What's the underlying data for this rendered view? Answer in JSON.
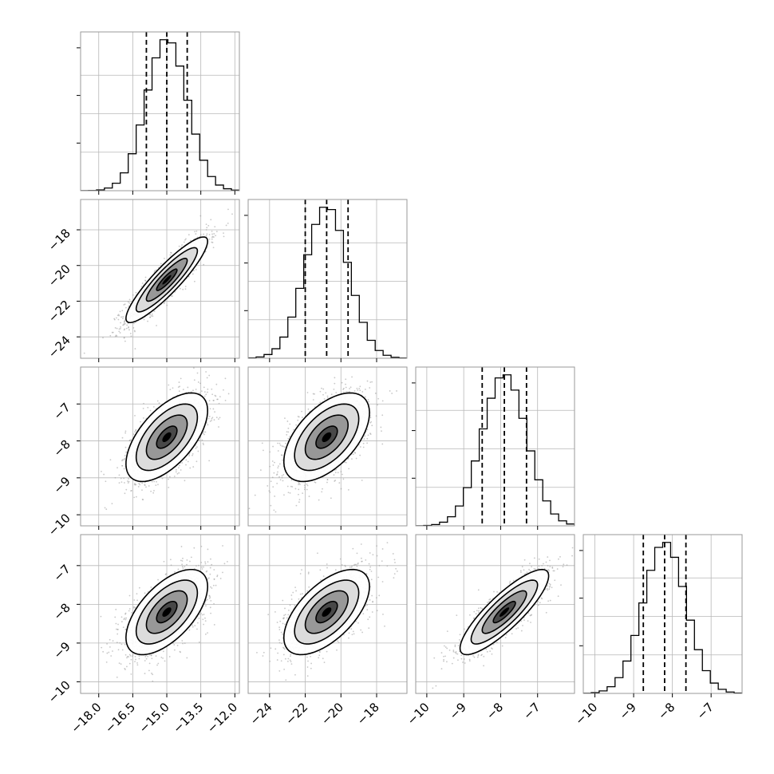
{
  "chart_data": {
    "type": "corner",
    "parameters": [
      {
        "mean": -15.0,
        "sigma": 0.9,
        "hist_range": [
          -18.8,
          -11.8
        ],
        "quantiles": [
          -15.9,
          -15.0,
          -14.1
        ],
        "ticks": [
          {
            "v": -18.0,
            "label": "−18.0"
          },
          {
            "v": -16.5,
            "label": "−16.5"
          },
          {
            "v": -15.0,
            "label": "−15.0"
          },
          {
            "v": -13.5,
            "label": "−13.5"
          },
          {
            "v": -12.0,
            "label": "−12.0"
          }
        ]
      },
      {
        "mean": -20.8,
        "sigma": 1.2,
        "hist_range": [
          -25.2,
          -16.3
        ],
        "quantiles": [
          -22.0,
          -20.8,
          -19.6
        ],
        "ticks": [
          {
            "v": -24,
            "label": "−24"
          },
          {
            "v": -22,
            "label": "−22"
          },
          {
            "v": -20,
            "label": "−20"
          },
          {
            "v": -18,
            "label": "−18"
          }
        ]
      },
      {
        "mean": -7.9,
        "sigma": 0.6,
        "hist_range": [
          -10.3,
          -6.0
        ],
        "quantiles": [
          -8.5,
          -7.9,
          -7.3
        ],
        "ticks": [
          {
            "v": -10,
            "label": "−10"
          },
          {
            "v": -9,
            "label": "−9"
          },
          {
            "v": -8,
            "label": "−8"
          },
          {
            "v": -7,
            "label": "−7"
          }
        ]
      },
      {
        "mean": -8.2,
        "sigma": 0.55,
        "hist_range": [
          -10.3,
          -6.2
        ],
        "quantiles": [
          -8.75,
          -8.2,
          -7.65
        ],
        "ticks": [
          {
            "v": -10,
            "label": "−10"
          },
          {
            "v": -9,
            "label": "−9"
          },
          {
            "v": -8,
            "label": "−8"
          },
          {
            "v": -7,
            "label": "−7"
          }
        ]
      }
    ],
    "correlations": [
      [
        1.0,
        0.9,
        0.6,
        0.6
      ],
      [
        0.9,
        1.0,
        0.55,
        0.6
      ],
      [
        0.6,
        0.55,
        1.0,
        0.85
      ],
      [
        0.6,
        0.6,
        0.85,
        1.0
      ]
    ],
    "histogram_bins": 20,
    "grid": true,
    "contour_levels_sigma": [
      0.5,
      1.0,
      1.5,
      2.0
    ],
    "colors": {
      "scatter": "#9a9a9a",
      "lines": "#000000",
      "frame": "#999999"
    }
  }
}
